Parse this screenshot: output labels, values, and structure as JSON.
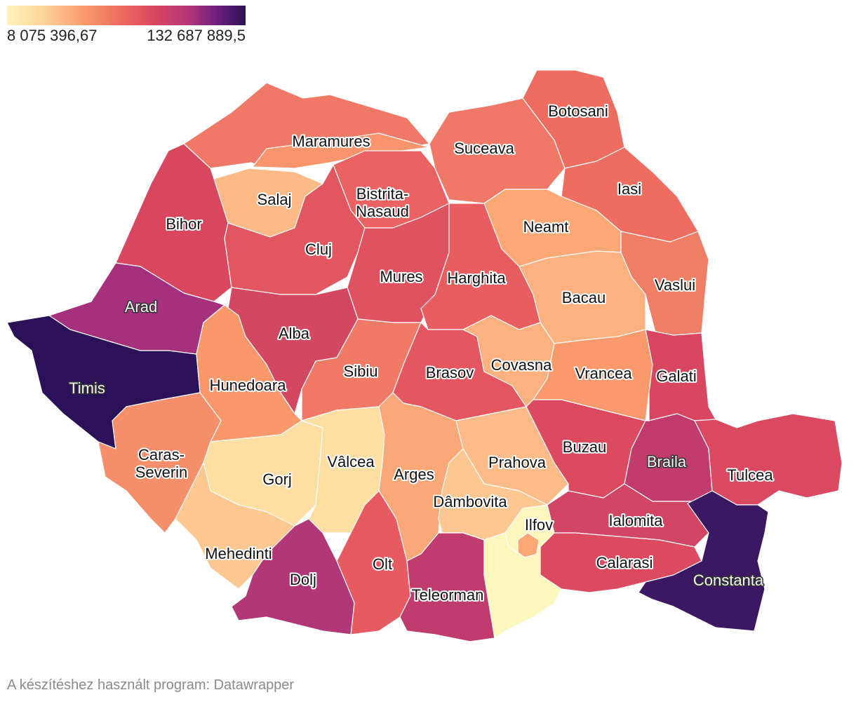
{
  "legend": {
    "min_label": "8 075 396,67",
    "max_label": "132 687 889,5",
    "min_color": "#fcf5b8",
    "max_color": "#2b1258"
  },
  "counties": {
    "maramures": "Maramures",
    "suceava": "Suceava",
    "botosani": "Botosani",
    "salaj": "Salaj",
    "bistrita_line1": "Bistrita-",
    "bistrita_line2": "Nasaud",
    "iasi": "Iasi",
    "bihor": "Bihor",
    "neamt": "Neamt",
    "cluj": "Cluj",
    "mures": "Mures",
    "harghita": "Harghita",
    "vaslui": "Vaslui",
    "bacau": "Bacau",
    "arad": "Arad",
    "alba": "Alba",
    "sibiu": "Sibiu",
    "brasov": "Brasov",
    "covasna": "Covasna",
    "vrancea": "Vrancea",
    "galati": "Galati",
    "timis": "Timis",
    "hunedoara": "Hunedoara",
    "caras_line1": "Caras-",
    "caras_line2": "Severin",
    "gorj": "Gorj",
    "valcea": "Vâlcea",
    "arges": "Arges",
    "prahova": "Prahova",
    "buzau": "Buzau",
    "braila": "Braila",
    "tulcea": "Tulcea",
    "dambovita": "Dâmbovita",
    "ilfov": "Ilfov",
    "ialomita": "Ialomita",
    "mehedinti": "Mehedinti",
    "olt": "Olt",
    "calarasi": "Calarasi",
    "dolj": "Dolj",
    "teleorman": "Teleorman",
    "constanta": "Constanta"
  },
  "footer": "A készítéshez használt program: Datawrapper"
}
